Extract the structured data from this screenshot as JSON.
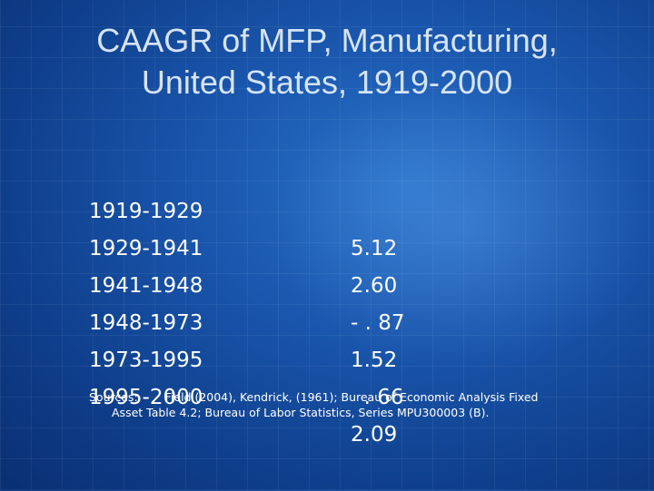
{
  "slide": {
    "title_line1": "CAAGR of MFP, Manufacturing,",
    "title_line2": "United States, 1919-2000",
    "rows": [
      {
        "period": "1919-1929",
        "value": "5.12"
      },
      {
        "period": "1929-1941",
        "value": "2.60"
      },
      {
        "period": "1941-1948",
        "value": "- . 87"
      },
      {
        "period": "1948-1973",
        "value": "1.52"
      },
      {
        "period": "1973-1995",
        "value": "  . 66"
      },
      {
        "period": "1995-2000",
        "value": "2.09"
      }
    ],
    "sources_label": "Sources:",
    "sources_line1": "Field (2004), Kendrick, (1961); Bureau of Economic Analysis Fixed",
    "sources_line2": "Asset Table 4.2; Bureau of Labor Statistics, Series MPU300003 (B)."
  },
  "colors": {
    "background": "#1a57ae",
    "title": "#d6e3f5",
    "text": "#ffffff"
  }
}
